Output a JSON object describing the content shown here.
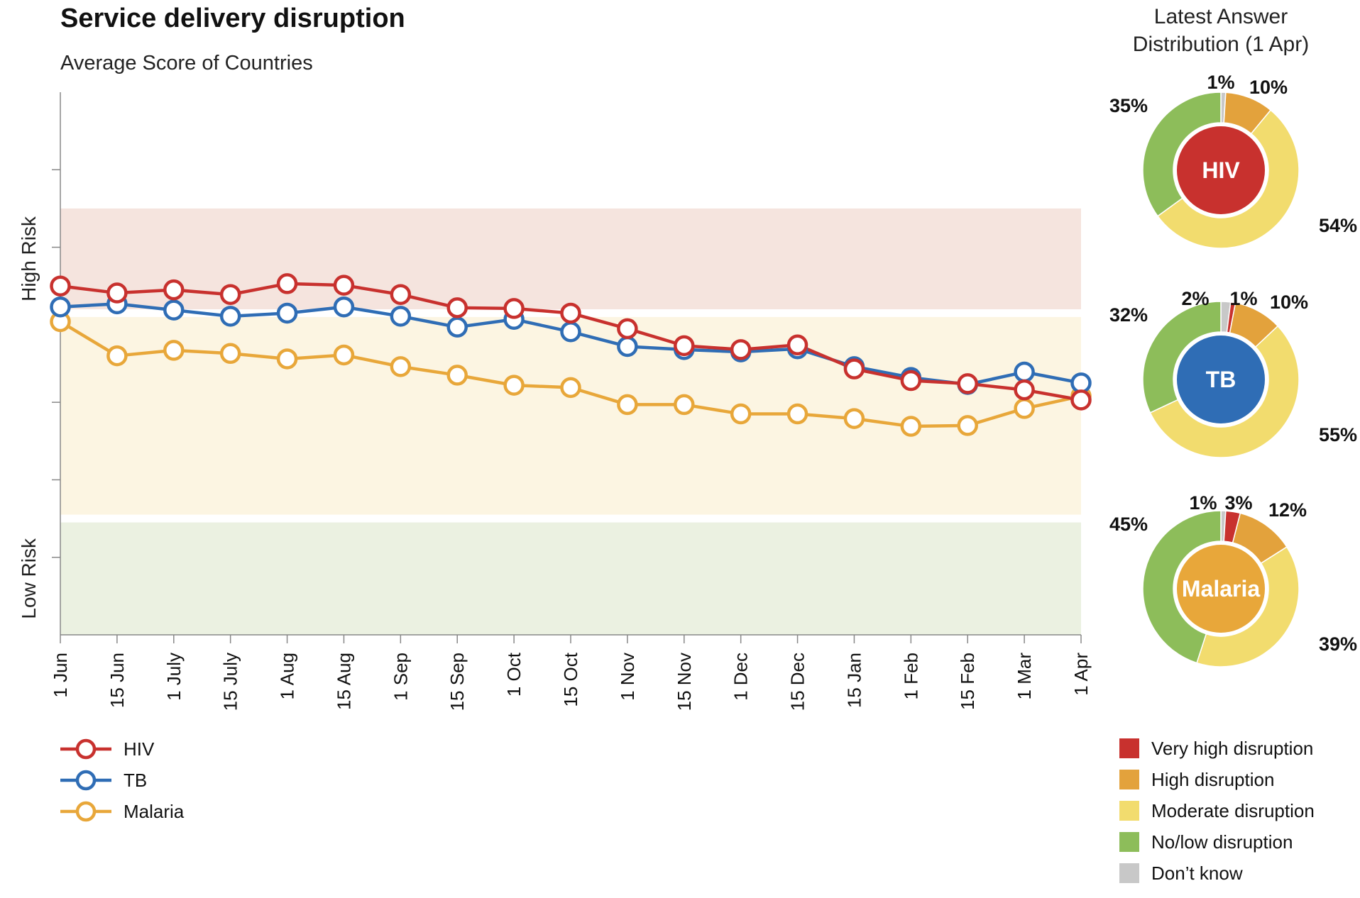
{
  "title": "Service delivery disruption",
  "subtitle": "Average Score of Countries",
  "band_labels": {
    "high": "High Risk",
    "low": "Low Risk"
  },
  "distribution_title": [
    "Latest Answer",
    "Distribution (1 Apr)"
  ],
  "colors": {
    "hiv": "#c8312e",
    "tb": "#2f6db5",
    "malaria": "#e8a73a",
    "band_high": "#f5e4de",
    "band_mid": "#fcf5e2",
    "band_low": "#ebf1e1",
    "very_high": "#c8312e",
    "high": "#e3a23c",
    "moderate": "#f2dc6e",
    "no_low": "#8dbd5a",
    "dont_know": "#c8c8c8"
  },
  "chart_data": [
    {
      "type": "line",
      "title": "Service delivery disruption",
      "subtitle": "Average Score of Countries",
      "categories": [
        "1 Jun",
        "15 Jun",
        "1 July",
        "15 July",
        "1 Aug",
        "15 Aug",
        "1 Sep",
        "15 Sep",
        "1 Oct",
        "15 Oct",
        "1 Nov",
        "15 Nov",
        "1 Dec",
        "15 Dec",
        "15 Jan",
        "1 Feb",
        "15 Feb",
        "1 Mar",
        "1 Apr"
      ],
      "ylim": [
        0,
        7
      ],
      "bands": [
        {
          "label": "High Risk",
          "from": 4.2,
          "to": 5.5
        },
        {
          "label": "",
          "from": 1.55,
          "to": 4.1
        },
        {
          "label": "Low Risk",
          "from": 0,
          "to": 1.45
        }
      ],
      "series": [
        {
          "name": "HIV",
          "color": "#c8312e",
          "values": [
            4.5,
            4.41,
            4.45,
            4.39,
            4.53,
            4.51,
            4.39,
            4.22,
            4.21,
            4.15,
            3.95,
            3.73,
            3.68,
            3.74,
            3.43,
            3.28,
            3.24,
            3.16,
            3.03
          ]
        },
        {
          "name": "TB",
          "color": "#2f6db5",
          "values": [
            4.23,
            4.27,
            4.19,
            4.11,
            4.15,
            4.23,
            4.11,
            3.97,
            4.07,
            3.91,
            3.72,
            3.68,
            3.65,
            3.69,
            3.46,
            3.32,
            3.23,
            3.39,
            3.25
          ]
        },
        {
          "name": "Malaria",
          "color": "#e8a73a",
          "values": [
            4.04,
            3.6,
            3.67,
            3.63,
            3.56,
            3.61,
            3.46,
            3.35,
            3.22,
            3.19,
            2.97,
            2.97,
            2.85,
            2.85,
            2.79,
            2.69,
            2.7,
            2.92,
            3.08
          ]
        }
      ]
    },
    {
      "type": "pie",
      "center_label": "HIV",
      "center_color": "#c8312e",
      "slices": [
        {
          "label": "Don't know",
          "value": 1,
          "color": "#c8c8c8",
          "pct_label": "1%"
        },
        {
          "label": "Very high disruption",
          "value": 0,
          "color": "#c8312e",
          "pct_label": ""
        },
        {
          "label": "High disruption",
          "value": 10,
          "color": "#e3a23c",
          "pct_label": "10%"
        },
        {
          "label": "Moderate disruption",
          "value": 54,
          "color": "#f2dc6e",
          "pct_label": "54%"
        },
        {
          "label": "No/low disruption",
          "value": 35,
          "color": "#8dbd5a",
          "pct_label": "35%"
        }
      ]
    },
    {
      "type": "pie",
      "center_label": "TB",
      "center_color": "#2f6db5",
      "slices": [
        {
          "label": "Don't know",
          "value": 2,
          "color": "#c8c8c8",
          "pct_label": "2%"
        },
        {
          "label": "Very high disruption",
          "value": 1,
          "color": "#c8312e",
          "pct_label": "1%"
        },
        {
          "label": "High disruption",
          "value": 10,
          "color": "#e3a23c",
          "pct_label": "10%"
        },
        {
          "label": "Moderate disruption",
          "value": 55,
          "color": "#f2dc6e",
          "pct_label": "55%"
        },
        {
          "label": "No/low disruption",
          "value": 32,
          "color": "#8dbd5a",
          "pct_label": "32%"
        }
      ]
    },
    {
      "type": "pie",
      "center_label": "Malaria",
      "center_color": "#e8a73a",
      "slices": [
        {
          "label": "Don't know",
          "value": 1,
          "color": "#c8c8c8",
          "pct_label": "1%"
        },
        {
          "label": "Very high disruption",
          "value": 3,
          "color": "#c8312e",
          "pct_label": "3%"
        },
        {
          "label": "High disruption",
          "value": 12,
          "color": "#e3a23c",
          "pct_label": "12%"
        },
        {
          "label": "Moderate disruption",
          "value": 39,
          "color": "#f2dc6e",
          "pct_label": "39%"
        },
        {
          "label": "No/low disruption",
          "value": 45,
          "color": "#8dbd5a",
          "pct_label": "45%"
        }
      ]
    }
  ],
  "series_legend": [
    {
      "label": "HIV",
      "color": "#c8312e"
    },
    {
      "label": "TB",
      "color": "#2f6db5"
    },
    {
      "label": "Malaria",
      "color": "#e8a73a"
    }
  ],
  "category_legend": [
    {
      "label": "Very high disruption",
      "color": "#c8312e"
    },
    {
      "label": "High disruption",
      "color": "#e3a23c"
    },
    {
      "label": "Moderate disruption",
      "color": "#f2dc6e"
    },
    {
      "label": "No/low disruption",
      "color": "#8dbd5a"
    },
    {
      "label": "Don’t know",
      "color": "#c8c8c8"
    }
  ]
}
